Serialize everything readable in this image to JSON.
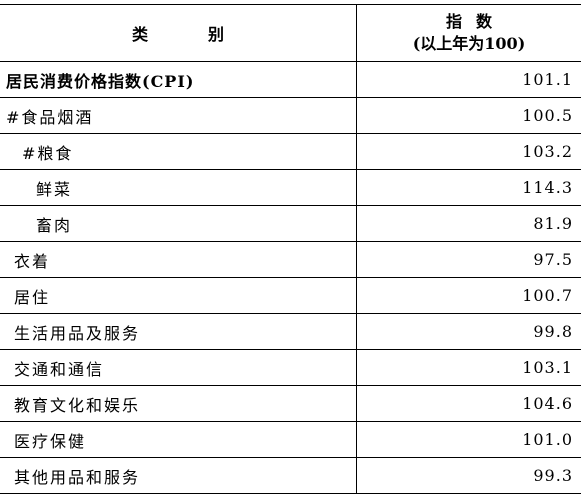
{
  "header": {
    "category": "类别",
    "index_line1": "指数",
    "index_line2": "(以上年为100)"
  },
  "rows": [
    {
      "category": "居民消费价格指数(CPI)",
      "value": "101.1"
    },
    {
      "category": "#食品烟酒",
      "value": "100.5"
    },
    {
      "category": "#粮食",
      "value": "103.2"
    },
    {
      "category": "鲜菜",
      "value": "114.3"
    },
    {
      "category": "畜肉",
      "value": "81.9"
    },
    {
      "category": "衣着",
      "value": "97.5"
    },
    {
      "category": "居住",
      "value": "100.7"
    },
    {
      "category": "生活用品及服务",
      "value": "99.8"
    },
    {
      "category": "交通和通信",
      "value": "103.1"
    },
    {
      "category": "教育文化和娱乐",
      "value": "104.6"
    },
    {
      "category": "医疗保健",
      "value": "101.0"
    },
    {
      "category": "其他用品和服务",
      "value": "99.3"
    }
  ]
}
